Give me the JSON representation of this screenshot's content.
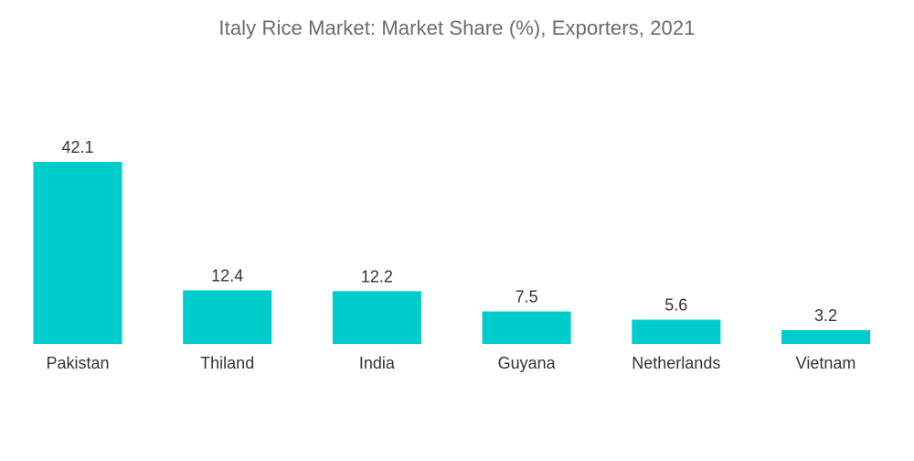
{
  "chart_data": {
    "type": "bar",
    "title": "Italy Rice Market: Market Share (%), Exporters, 2021",
    "xlabel": "",
    "ylabel": "",
    "categories": [
      "Pakistan",
      "Thiland",
      "India",
      "Guyana",
      "Netherlands",
      "Vietnam"
    ],
    "values": [
      42.1,
      12.4,
      12.2,
      7.5,
      5.6,
      3.2
    ],
    "value_labels": [
      "42.1",
      "12.4",
      "12.2",
      "7.5",
      "5.6",
      "3.2"
    ],
    "ylim": [
      0,
      42.1
    ],
    "grid": false,
    "legend": "none",
    "bar_color": "#00CCCC"
  }
}
